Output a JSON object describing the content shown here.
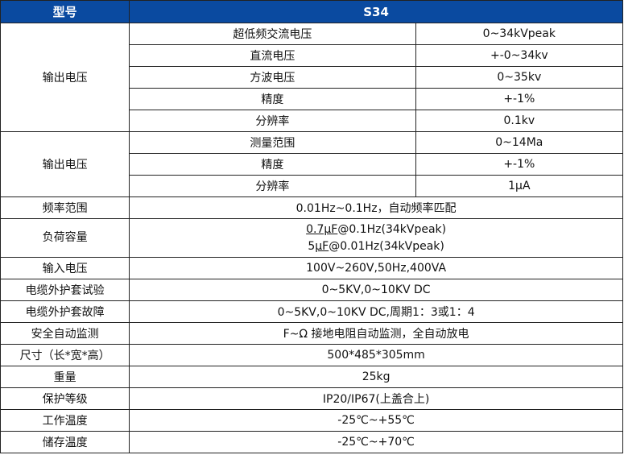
{
  "header": {
    "col1": "型号",
    "col2": "S34"
  },
  "output_voltage": {
    "label": "输出电压",
    "rows": [
      {
        "name": "超低频交流电压",
        "value": "0~34kVpeak"
      },
      {
        "name": "直流电压",
        "value": "+-0~34kv"
      },
      {
        "name": "方波电压",
        "value": "0~35kv"
      },
      {
        "name": "精度",
        "value": "+-1%"
      },
      {
        "name": "分辨率",
        "value": "0.1kv"
      }
    ]
  },
  "output_current": {
    "label": "输出电压",
    "rows": [
      {
        "name": "测量范围",
        "value": "0~14Ma"
      },
      {
        "name": "精度",
        "value": "+-1%"
      },
      {
        "name": "分辨率",
        "value": "1μA"
      }
    ]
  },
  "load": {
    "label": "负荷容量",
    "line1_underlined": "0.7μF",
    "line1_rest": "@0.1Hz(34kVpeak)",
    "line2_prefix": "5",
    "line2_underlined": "μF",
    "line2_rest": "@0.01Hz(34kVpeak)"
  },
  "rows_before": [
    {
      "label": "频率范围",
      "value": "0.01Hz~0.1Hz，自动频率匹配"
    }
  ],
  "rows_after": [
    {
      "label": "输入电压",
      "value": "100V~260V,50Hz,400VA"
    },
    {
      "label": "电缆外护套试验",
      "value": "0~5KV,0~10KV DC"
    },
    {
      "label": "电缆外护套故障",
      "value": "0~5KV,0~10KV DC,周期1：3或1：4"
    },
    {
      "label": "安全自动监测",
      "value": "F~Ω 接地电阻自动监测，全自动放电"
    },
    {
      "label": "尺寸（长*宽*高）",
      "value": "500*485*305mm"
    },
    {
      "label": "重量",
      "value": "25kg"
    },
    {
      "label": "保护等级",
      "value": "IP20/IP67(上盖合上)"
    },
    {
      "label": "工作温度",
      "value": "-25℃~+55℃"
    },
    {
      "label": "储存温度",
      "value": "-25℃~+70℃"
    }
  ]
}
